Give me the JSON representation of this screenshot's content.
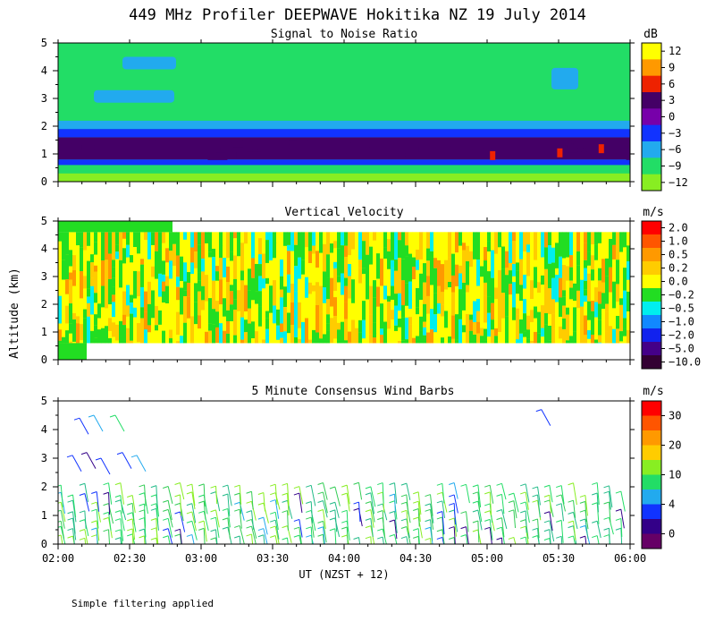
{
  "title": "449 MHz Profiler DEEPWAVE Hokitika NZ 19 July 2014",
  "ylabel": "Altitude (km)",
  "xlabel": "UT  (NZST + 12)",
  "footnote": "Simple filtering applied",
  "chart_data": [
    {
      "type": "heatmap",
      "title": "Signal to Noise Ratio",
      "units": "dB",
      "x_range_hours": [
        2.0,
        6.0
      ],
      "y_range_km": [
        0,
        5
      ],
      "x_ticks": [
        "02:00",
        "02:30",
        "03:00",
        "03:30",
        "04:00",
        "04:30",
        "05:00",
        "05:30",
        "06:00"
      ],
      "y_ticks": [
        "0",
        "1",
        "2",
        "3",
        "4",
        "5"
      ],
      "colorbar_labels": [
        "12",
        "9",
        "6",
        "3",
        "0",
        "−3",
        "−6",
        "−9",
        "−12"
      ],
      "colorbar_colors": [
        "#ffff00",
        "#ff9900",
        "#ee2200",
        "#440066",
        "#7700aa",
        "#1133ff",
        "#22aaee",
        "#22dd66",
        "#88ee22"
      ],
      "profile": [
        {
          "alt_km": [
            0.0,
            0.3
          ],
          "snr_db": -12
        },
        {
          "alt_km": [
            0.3,
            0.6
          ],
          "snr_db": -9
        },
        {
          "alt_km": [
            0.6,
            0.8
          ],
          "snr_db": -3
        },
        {
          "alt_km": [
            0.8,
            1.6
          ],
          "snr_db": 1.5
        },
        {
          "alt_km": [
            1.6,
            1.9
          ],
          "snr_db": -3
        },
        {
          "alt_km": [
            1.9,
            2.2
          ],
          "snr_db": -6
        },
        {
          "alt_km": [
            2.2,
            5.0
          ],
          "snr_db": -9
        }
      ]
    },
    {
      "type": "heatmap",
      "title": "Vertical Velocity",
      "units": "m/s",
      "x_range_hours": [
        2.0,
        6.0
      ],
      "y_range_km": [
        0,
        5
      ],
      "x_ticks": [
        "02:00",
        "02:30",
        "03:00",
        "03:30",
        "04:00",
        "04:30",
        "05:00",
        "05:30",
        "06:00"
      ],
      "y_ticks": [
        "0",
        "1",
        "2",
        "3",
        "4",
        "5"
      ],
      "colorbar_labels": [
        "2.0",
        "1.0",
        "0.5",
        "0.2",
        "0.0",
        "−0.2",
        "−0.5",
        "−1.0",
        "−2.0",
        "−5.0",
        "−10.0"
      ],
      "colorbar_colors": [
        "#ff0000",
        "#ff5500",
        "#ff9900",
        "#ffcc00",
        "#ffff00",
        "#22dd22",
        "#00eeee",
        "#1188ff",
        "#1122ee",
        "#440088",
        "#330033"
      ],
      "valid_alt_km": [
        0.6,
        4.6
      ]
    },
    {
      "type": "scatter",
      "title": "5 Minute Consensus Wind Barbs",
      "units": "m/s",
      "x_range_hours": [
        2.0,
        6.0
      ],
      "y_range_km": [
        0,
        5
      ],
      "x_ticks": [
        "02:00",
        "02:30",
        "03:00",
        "03:30",
        "04:00",
        "04:30",
        "05:00",
        "05:30",
        "06:00"
      ],
      "y_ticks": [
        "0",
        "1",
        "2",
        "3",
        "4",
        "5"
      ],
      "colorbar_labels": [
        "30",
        "20",
        "10",
        "4",
        "0"
      ],
      "colorbar_colors": [
        "#ff0000",
        "#ff5500",
        "#ff9900",
        "#ffcc00",
        "#88ee22",
        "#22dd66",
        "#22aaee",
        "#1133ff",
        "#330088",
        "#660066"
      ],
      "barb_altitudes_km": [
        0.2,
        0.5,
        0.8,
        1.1,
        1.4,
        1.7,
        2.0
      ],
      "time_step_min": 5
    }
  ]
}
